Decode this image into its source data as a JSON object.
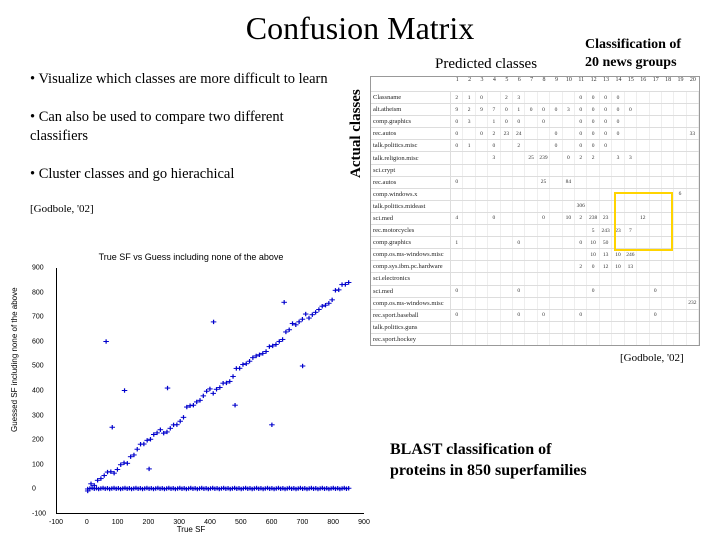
{
  "title": "Confusion Matrix",
  "bullets": {
    "b1": "• Visualize which classes are more difficult to learn",
    "b2": "• Can also be used to compare two different classifiers",
    "b3": "• Cluster classes and go hierachical",
    "cite": "[Godbole, '02]"
  },
  "predicted_label": "Predicted classes",
  "classification_label_l1": "Classification of",
  "classification_label_l2": "20 news groups",
  "actual_label": "Actual classes",
  "matrix": {
    "col_headers": [
      "1",
      "2",
      "3",
      "4",
      "5",
      "6",
      "7",
      "8",
      "9",
      "10",
      "11",
      "12",
      "13",
      "14",
      "15",
      "16",
      "17",
      "18",
      "19",
      "20"
    ],
    "row_labels": [
      "Classname",
      "alt.atheism",
      "comp.graphics",
      "rec.autos",
      "talk.politics.misc",
      "talk.religion.misc",
      "sci.crypt",
      "rec.autos",
      "comp.windows.x",
      "talk.politics.mideast",
      "sci.med",
      "rec.motorcycles",
      "comp.graphics",
      "comp.os.ms-windows.misc",
      "comp.sys.ibm.pc.hardware",
      "sci.electronics",
      "sci.med",
      "comp.os.ms-windows.misc",
      "rec.sport.baseball",
      "talk.politics.guns",
      "rec.sport.hockey"
    ],
    "cells": [
      [
        "2",
        "1",
        "0",
        "",
        "2",
        "3",
        "",
        "",
        "",
        "",
        "0",
        "0",
        "0",
        "0",
        "",
        "",
        "",
        "",
        "",
        " "
      ],
      [
        "9",
        "2",
        "9",
        "7",
        "0",
        "1",
        "0",
        "0",
        "0",
        "3",
        "0",
        "0",
        "0",
        "0",
        "0",
        "",
        "",
        "",
        "",
        ""
      ],
      [
        "0",
        "3",
        "",
        "1",
        "0",
        "0",
        "",
        "0",
        "",
        "",
        "0",
        "0",
        "0",
        "0",
        "",
        "",
        "",
        "",
        "",
        ""
      ],
      [
        "0",
        "",
        "0",
        "2",
        "23",
        "24",
        "",
        "",
        "0",
        "",
        "0",
        "0",
        "0",
        "0",
        "",
        "",
        "",
        "",
        "",
        "33"
      ],
      [
        "0",
        "1",
        "",
        "0",
        "",
        "2",
        "",
        "",
        "0",
        "",
        "0",
        "0",
        "0",
        "",
        "",
        "",
        "",
        "",
        "",
        ""
      ],
      [
        "",
        "",
        "",
        "3",
        "",
        "",
        "25",
        "239",
        "",
        "0",
        "2",
        "2",
        "",
        "3",
        "3",
        "",
        "",
        "",
        "",
        ""
      ],
      [
        "",
        "",
        "",
        "",
        "",
        "",
        "",
        "",
        "",
        "",
        "",
        "",
        "",
        "",
        "",
        "",
        "",
        "",
        "",
        ""
      ],
      [
        "0",
        "",
        "",
        "",
        "",
        "",
        "",
        "25",
        "",
        "84",
        "",
        "",
        "",
        "",
        "",
        "",
        "",
        "",
        "",
        ""
      ],
      [
        "",
        "",
        "",
        "",
        "",
        "",
        "",
        "",
        "",
        "",
        "",
        "",
        "",
        "",
        "",
        "",
        "",
        "",
        "6",
        ""
      ],
      [
        "",
        "",
        "",
        "",
        "",
        "",
        "",
        "",
        "",
        "",
        "306",
        "",
        "",
        "",
        "",
        "",
        "",
        "",
        "",
        ""
      ],
      [
        "4",
        "",
        "",
        "0",
        "",
        "",
        "",
        "0",
        "",
        "10",
        "2",
        "238",
        "23",
        "",
        "",
        "12",
        "",
        "",
        "",
        ""
      ],
      [
        "",
        "",
        "",
        "",
        "",
        "",
        "",
        "",
        "",
        "",
        "",
        "5",
        "243",
        "23",
        "7",
        "",
        "",
        "",
        "",
        ""
      ],
      [
        "1",
        "",
        "",
        "",
        "",
        "0",
        "",
        "",
        "",
        "",
        "0",
        "10",
        "50",
        "",
        "",
        "",
        "",
        "",
        "",
        ""
      ],
      [
        "",
        "",
        "",
        "",
        "",
        "",
        "",
        "",
        "",
        "",
        "",
        "10",
        "13",
        "10",
        "246",
        "",
        "",
        "",
        "",
        ""
      ],
      [
        "",
        "",
        "",
        "",
        "",
        "",
        "",
        "",
        "",
        "",
        "2",
        "0",
        "12",
        "10",
        "13",
        "",
        "",
        "",
        "",
        ""
      ],
      [
        "",
        "",
        "",
        "",
        "",
        "",
        "",
        "",
        "",
        "",
        "",
        "",
        "",
        "",
        "",
        "",
        "",
        "",
        "",
        ""
      ],
      [
        "0",
        "",
        "",
        "",
        "",
        "0",
        "",
        "",
        "",
        "",
        "",
        "0",
        "",
        "",
        "",
        "",
        "0",
        "",
        "",
        ""
      ],
      [
        "",
        "",
        "",
        "",
        "",
        "",
        "",
        "",
        "",
        "",
        "",
        "",
        "",
        "",
        "",
        "",
        "",
        "",
        "",
        "232"
      ],
      [
        "0",
        "",
        "",
        "",
        "",
        "0",
        "",
        "0",
        "",
        "",
        "0",
        "",
        "",
        "",
        "",
        "",
        "0",
        "",
        "",
        ""
      ],
      [
        "",
        "",
        "",
        "",
        "",
        "",
        "",
        "",
        "",
        "",
        "",
        "",
        "",
        "",
        "",
        "",
        "",
        "",
        "",
        ""
      ]
    ],
    "highlight_box": {
      "top_pct": 43,
      "left_pct": 74,
      "width_pct": 18,
      "height_pct": 22
    },
    "grid_color": "#dddddd",
    "border_color": "#999999"
  },
  "citation_right": "[Godbole, '02]",
  "blast_caption_l1": "BLAST classification of",
  "blast_caption_l2": "proteins in 850 superfamilies",
  "scatter": {
    "type": "scatter",
    "title": "True SF vs Guess including none of the above",
    "xlabel": "True SF",
    "ylabel": "Guessed SF including none of the above",
    "xlim": [
      -100,
      900
    ],
    "ylim": [
      -100,
      900
    ],
    "xticks": [
      -100,
      0,
      100,
      200,
      300,
      400,
      500,
      600,
      700,
      800,
      900
    ],
    "yticks": [
      -100,
      0,
      100,
      200,
      300,
      400,
      500,
      600,
      700,
      800,
      900
    ],
    "xtick_labels": [
      "-100",
      "0",
      "100",
      "200",
      "300",
      "400",
      "500",
      "600",
      "700",
      "800",
      "900"
    ],
    "ytick_labels": [
      "-100",
      "0",
      "100",
      "200",
      "300",
      "400",
      "500",
      "600",
      "700",
      "800",
      "900"
    ],
    "marker": "+",
    "marker_color": "#0000cc",
    "marker_size": 5,
    "background_color": "#ffffff",
    "axis_color": "#000000",
    "diagonal_density": 80,
    "bottom_stripe_y": 0,
    "bottom_stripe_density": 120,
    "outliers": [
      [
        120,
        400
      ],
      [
        260,
        410
      ],
      [
        410,
        680
      ],
      [
        480,
        340
      ],
      [
        600,
        260
      ],
      [
        80,
        250
      ],
      [
        200,
        80
      ],
      [
        700,
        500
      ],
      [
        640,
        760
      ],
      [
        60,
        600
      ]
    ]
  }
}
